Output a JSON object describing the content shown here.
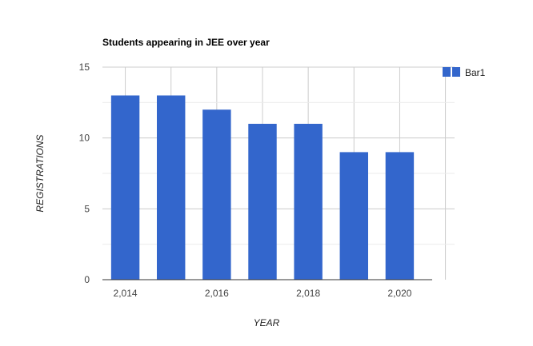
{
  "chart_data": {
    "type": "bar",
    "title": "Students appearing in JEE over year",
    "xlabel": "YEAR",
    "ylabel": "REGISTRATIONS",
    "x": [
      2014,
      2015,
      2016,
      2017,
      2018,
      2019,
      2020
    ],
    "x_tick_labels": [
      "2,014",
      "2,016",
      "2,018",
      "2,020"
    ],
    "x_tick_values": [
      2014,
      2016,
      2018,
      2020
    ],
    "xlim": [
      2013.5,
      2021.2
    ],
    "series": [
      {
        "name": "Bar1",
        "values": [
          13,
          13,
          12,
          11,
          11,
          9,
          9
        ]
      }
    ],
    "ylim": [
      0,
      15
    ],
    "y_ticks": [
      0,
      5,
      10,
      15
    ],
    "grid": true,
    "legend_position": "right",
    "bar_color": "#3366cc"
  }
}
